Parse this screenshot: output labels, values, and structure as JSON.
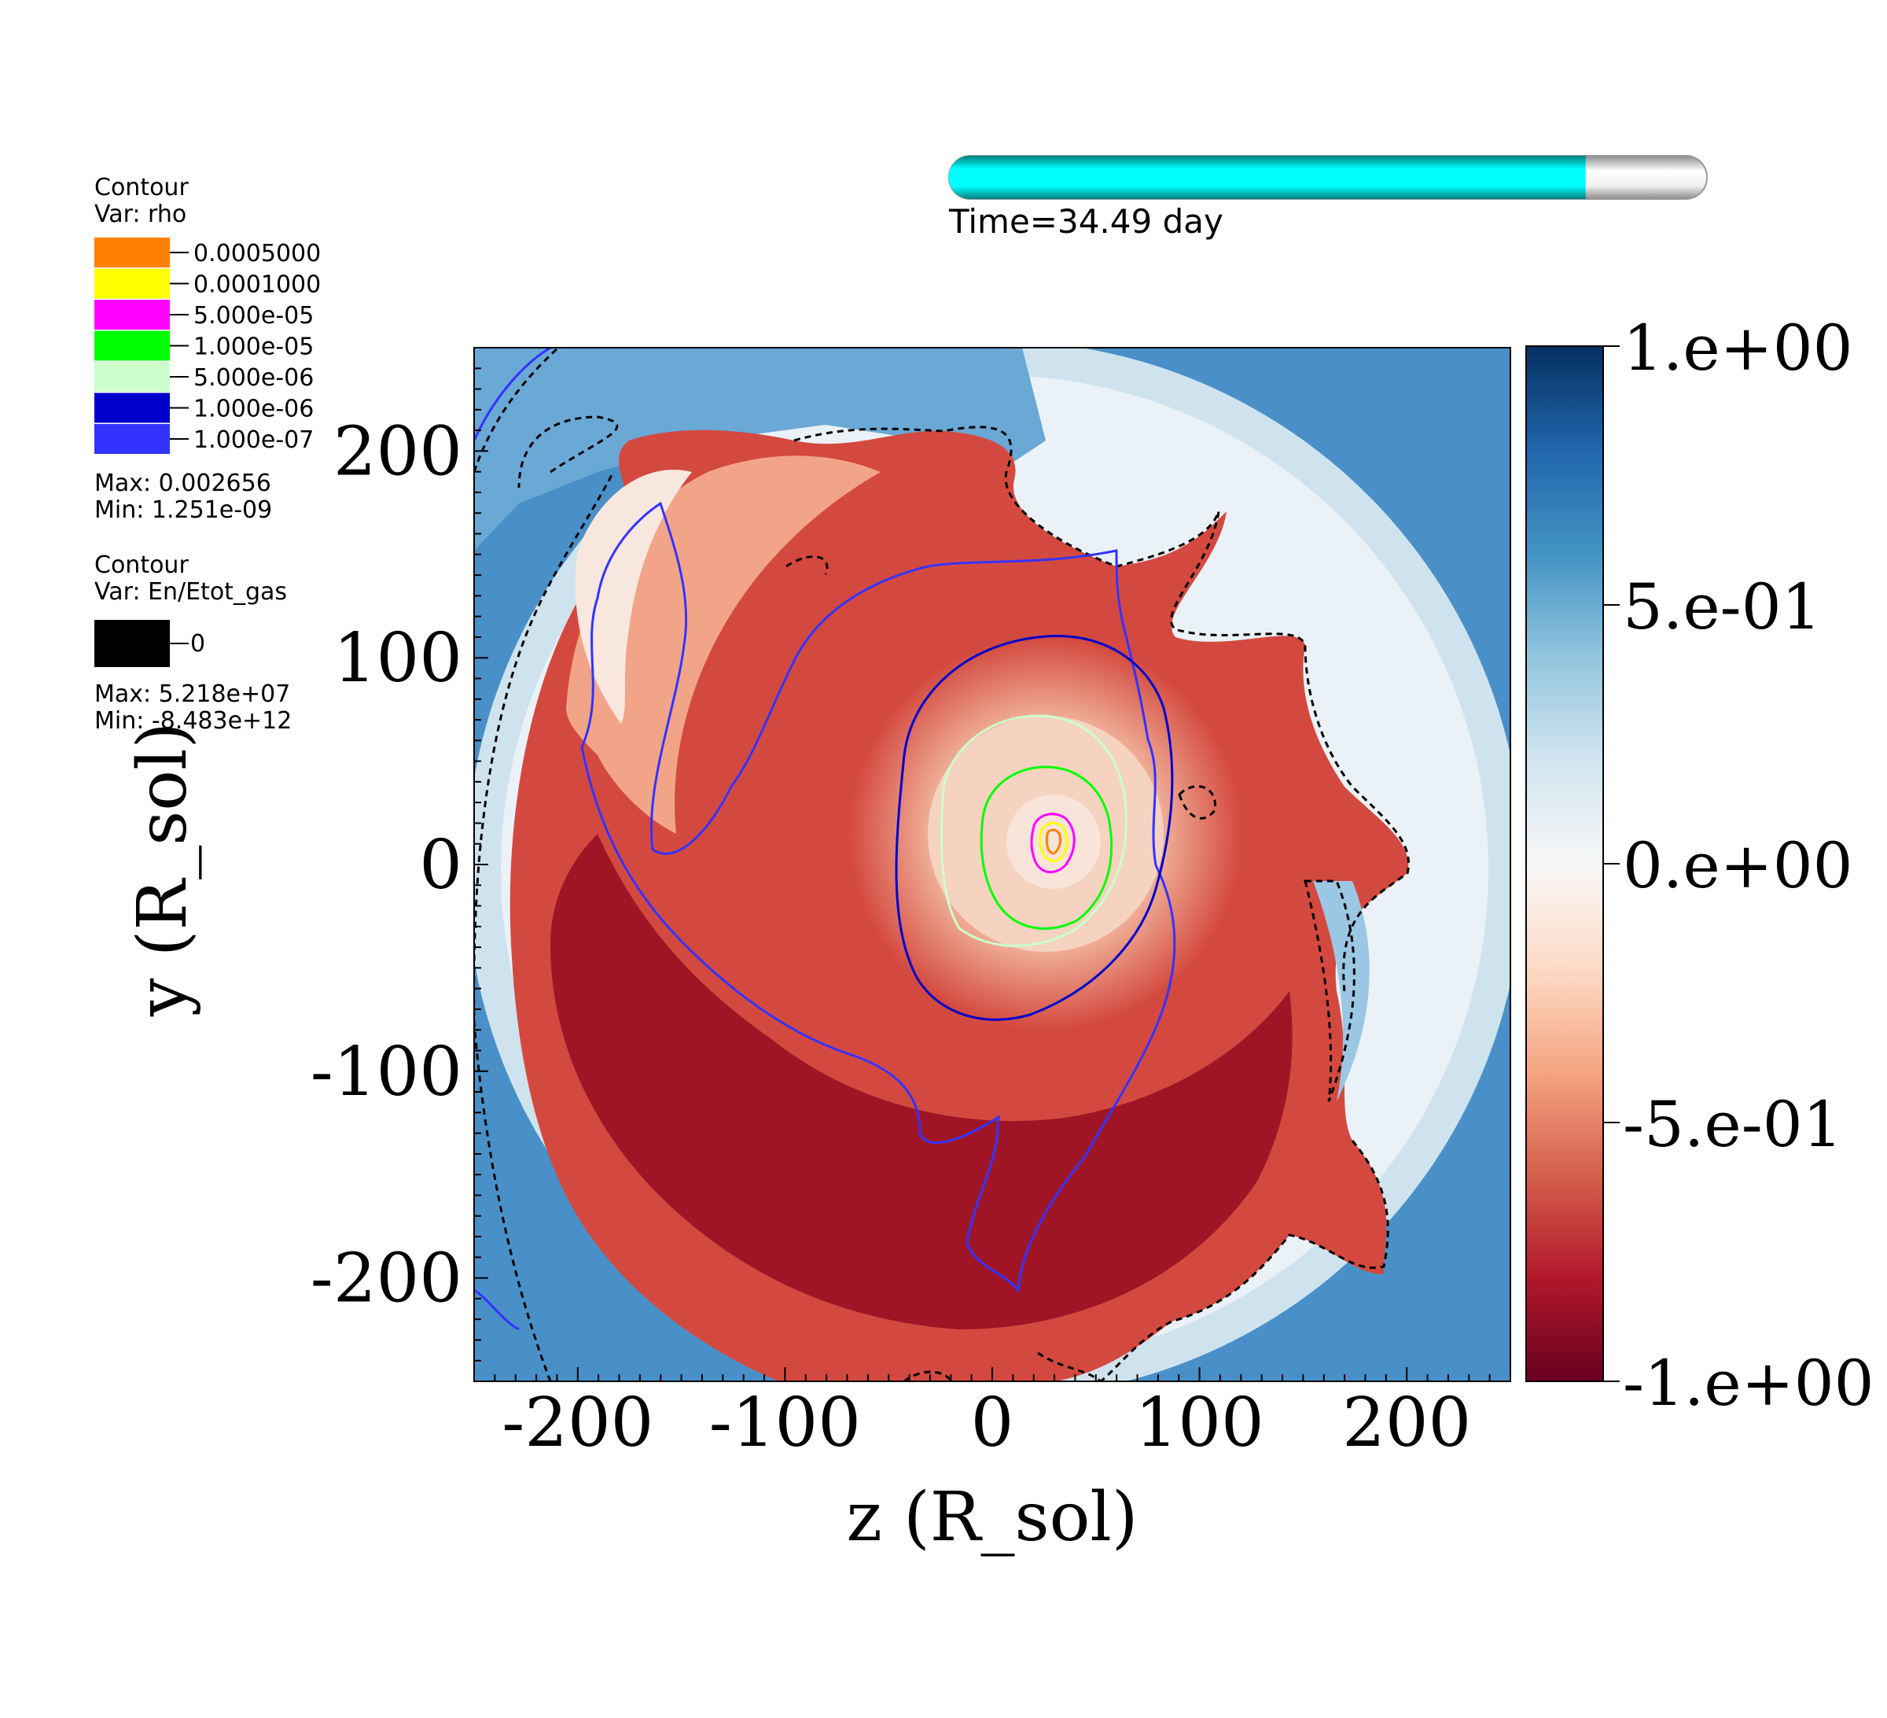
{
  "time_bar": {
    "label": "Time=34.49 day",
    "progress_fraction": 0.84,
    "fill_color": "#00e5e5",
    "track_color": "#e6e6e6"
  },
  "legend_rho": {
    "title": "Contour",
    "var_label": "Var: rho",
    "levels": [
      {
        "value": "0.0005000",
        "color": "#ff8000"
      },
      {
        "value": "0.0001000",
        "color": "#ffff00"
      },
      {
        "value": "5.000e-05",
        "color": "#ff00ff"
      },
      {
        "value": "1.000e-05",
        "color": "#00ff00"
      },
      {
        "value": "5.000e-06",
        "color": "#ccffcc"
      },
      {
        "value": "1.000e-06",
        "color": "#0000cc"
      },
      {
        "value": "1.000e-07",
        "color": "#3333ff"
      }
    ],
    "max_label": "Max:  0.002656",
    "min_label": "Min:  1.251e-09"
  },
  "legend_en": {
    "title": "Contour",
    "var_label": "Var: En/Etot_gas",
    "levels": [
      {
        "value": "0",
        "color": "#000000"
      }
    ],
    "max_label": "Max:  5.218e+07",
    "min_label": "Min: -8.483e+12"
  },
  "chart_data": {
    "type": "heatmap",
    "xlabel": "z (R_sol)",
    "ylabel": "y (R_sol)",
    "xlim": [
      -250,
      250
    ],
    "ylim": [
      -250,
      250
    ],
    "x_ticks": [
      "-200",
      "-100",
      "0",
      "100",
      "200"
    ],
    "y_ticks": [
      "200",
      "100",
      "0",
      "-100",
      "-200"
    ],
    "colorbar": {
      "range": [
        -1,
        1
      ],
      "tick_labels": [
        "1.e+00",
        "5.e-01",
        "0.e+00",
        "-5.e-01",
        "-1.e+00"
      ],
      "colormap": "RdBu",
      "colors": [
        "#67001f",
        "#b2182b",
        "#d6604d",
        "#f4a582",
        "#fddbc7",
        "#f7f7f7",
        "#d1e5f0",
        "#92c5de",
        "#4393c3",
        "#2166ac",
        "#053061"
      ]
    },
    "field_colors": {
      "outer_blue": "#4a90c8",
      "light_blue": "#cfe3ef",
      "deep_red": "#a01526",
      "mid_red": "#d4493f",
      "light_red": "#f2a488",
      "pale_core": "#f5d3c0"
    }
  }
}
